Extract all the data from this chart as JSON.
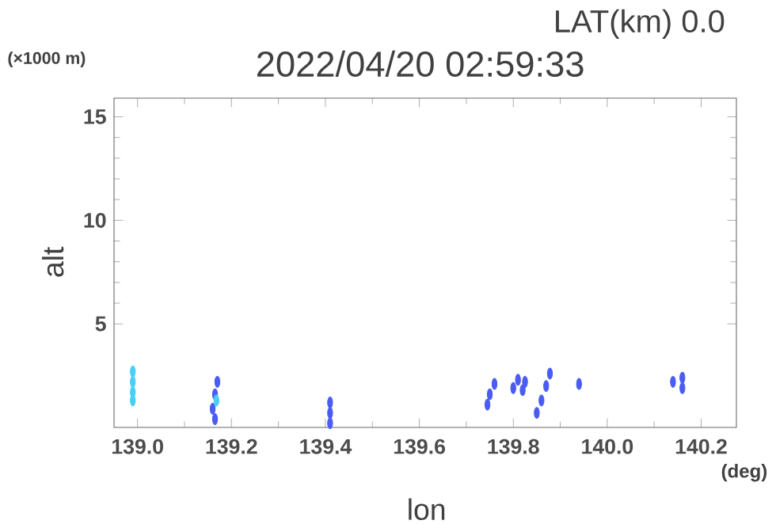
{
  "chart_data": {
    "type": "scatter",
    "title": "2022/04/20 02:59:33",
    "subtitle": "LAT(km) 0.0",
    "xlabel": "lon",
    "ylabel": "alt",
    "annotations": [
      "(×1000 m)",
      "(deg)"
    ],
    "xlim": [
      138.95,
      140.275
    ],
    "ylim": [
      0,
      15.9
    ],
    "xticks": [
      {
        "value": 139.0,
        "label": "139.0"
      },
      {
        "value": 139.2,
        "label": "139.2"
      },
      {
        "value": 139.4,
        "label": "139.4"
      },
      {
        "value": 139.6,
        "label": "139.6"
      },
      {
        "value": 139.8,
        "label": "139.8"
      },
      {
        "value": 140.0,
        "label": "140.0"
      },
      {
        "value": 140.2,
        "label": "140.2"
      }
    ],
    "yticks": [
      5,
      10,
      15
    ],
    "grid": false,
    "series": [
      {
        "color": "#4a5cf2",
        "x": [
          139.17,
          139.165,
          139.16,
          139.165,
          139.41,
          139.41,
          139.41,
          139.745,
          139.75,
          139.76,
          139.8,
          139.81,
          139.825,
          139.82,
          139.85,
          139.86,
          139.87,
          139.878,
          139.94,
          140.14,
          140.16,
          140.16
        ],
        "values": [
          2.2,
          1.6,
          0.9,
          0.4,
          1.2,
          0.7,
          0.2,
          1.1,
          1.6,
          2.1,
          1.9,
          2.3,
          2.2,
          1.8,
          0.7,
          1.3,
          2.0,
          2.6,
          2.1,
          2.2,
          2.4,
          1.9
        ]
      },
      {
        "color": "#48d0f8",
        "x": [
          138.99,
          138.99,
          138.99,
          138.99,
          139.168
        ],
        "values": [
          2.7,
          2.2,
          1.7,
          1.3,
          1.3
        ]
      }
    ]
  }
}
